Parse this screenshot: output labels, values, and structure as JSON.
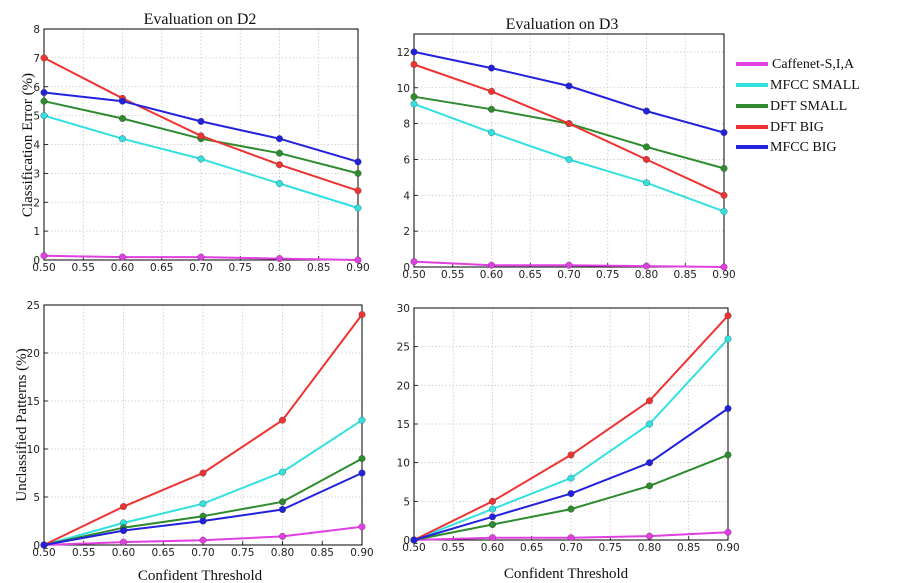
{
  "figure": {
    "ylabel_top": "Classification Error  (%)",
    "ylabel_bottom": "Unclassified Patterns (%)",
    "xlabel_bottom_left": "Confident Threshold",
    "xlabel_bottom_right": "Confident Threshold"
  },
  "legend": {
    "entries": [
      {
        "label": "Caffenet-S,I,A",
        "color": "#e040e0"
      },
      {
        "label": "MFCC SMALL",
        "color": "#33e0e0"
      },
      {
        "label": "DFT SMALL",
        "color": "#2e8b2e"
      },
      {
        "label": "DFT BIG",
        "color": "#ee3333"
      },
      {
        "label": "MFCC BIG",
        "color": "#2222dd"
      }
    ]
  },
  "chart_data": [
    {
      "type": "line",
      "title": "Evaluation on D2",
      "xlabel": "",
      "ylabel": "Classification Error  (%)",
      "x": [
        0.5,
        0.6,
        0.7,
        0.8,
        0.9
      ],
      "xlim": [
        0.5,
        0.9
      ],
      "ylim": [
        0,
        8
      ],
      "xticks": [
        "0.50",
        "0.55",
        "0.60",
        "0.65",
        "0.70",
        "0.75",
        "0.80",
        "0.85",
        "0.90"
      ],
      "yticks": [
        "0",
        "1",
        "2",
        "3",
        "4",
        "5",
        "6",
        "7",
        "8"
      ],
      "grid": true,
      "series": [
        {
          "name": "Caffenet-S,I,A",
          "color": "#e040e0",
          "values": [
            0.15,
            0.1,
            0.1,
            0.05,
            0.0
          ]
        },
        {
          "name": "MFCC SMALL",
          "color": "#33e0e0",
          "values": [
            5.0,
            4.2,
            3.5,
            2.65,
            1.8
          ]
        },
        {
          "name": "DFT SMALL",
          "color": "#2e8b2e",
          "values": [
            5.5,
            4.9,
            4.2,
            3.7,
            3.0
          ]
        },
        {
          "name": "DFT BIG",
          "color": "#ee3333",
          "values": [
            7.0,
            5.6,
            4.3,
            3.3,
            2.4
          ]
        },
        {
          "name": "MFCC BIG",
          "color": "#2222dd",
          "values": [
            5.8,
            5.5,
            4.8,
            4.2,
            3.4
          ]
        }
      ]
    },
    {
      "type": "line",
      "title": "Evaluation on D3",
      "xlabel": "",
      "ylabel": "",
      "x": [
        0.5,
        0.6,
        0.7,
        0.8,
        0.9
      ],
      "xlim": [
        0.5,
        0.9
      ],
      "ylim": [
        0,
        13
      ],
      "xticks": [
        "0.50",
        "0.55",
        "0.60",
        "0.65",
        "0.70",
        "0.75",
        "0.80",
        "0.85",
        "0.90"
      ],
      "yticks": [
        "0",
        "2",
        "4",
        "6",
        "8",
        "10",
        "12"
      ],
      "grid": true,
      "series": [
        {
          "name": "Caffenet-S,I,A",
          "color": "#e040e0",
          "values": [
            0.3,
            0.1,
            0.1,
            0.05,
            0.0
          ]
        },
        {
          "name": "MFCC SMALL",
          "color": "#33e0e0",
          "values": [
            9.1,
            7.5,
            6.0,
            4.7,
            3.1
          ]
        },
        {
          "name": "DFT SMALL",
          "color": "#2e8b2e",
          "values": [
            9.5,
            8.8,
            8.0,
            6.7,
            5.5
          ]
        },
        {
          "name": "DFT BIG",
          "color": "#ee3333",
          "values": [
            11.3,
            9.8,
            8.0,
            6.0,
            4.0
          ]
        },
        {
          "name": "MFCC BIG",
          "color": "#2222dd",
          "values": [
            12.0,
            11.1,
            10.1,
            8.7,
            7.5
          ]
        }
      ]
    },
    {
      "type": "line",
      "title": "",
      "xlabel": "Confident Threshold",
      "ylabel": "Unclassified Patterns (%)",
      "x": [
        0.5,
        0.6,
        0.7,
        0.8,
        0.9
      ],
      "xlim": [
        0.5,
        0.9
      ],
      "ylim": [
        0,
        25
      ],
      "xticks": [
        "0.50",
        "0.55",
        "0.60",
        "0.65",
        "0.70",
        "0.75",
        "0.80",
        "0.85",
        "0.90"
      ],
      "yticks": [
        "0",
        "5",
        "10",
        "15",
        "20",
        "25"
      ],
      "grid": true,
      "series": [
        {
          "name": "Caffenet-S,I,A",
          "color": "#e040e0",
          "values": [
            0.0,
            0.3,
            0.5,
            0.9,
            1.9
          ]
        },
        {
          "name": "MFCC SMALL",
          "color": "#33e0e0",
          "values": [
            0.0,
            2.3,
            4.3,
            7.6,
            13.0
          ]
        },
        {
          "name": "DFT SMALL",
          "color": "#2e8b2e",
          "values": [
            0.0,
            1.8,
            3.0,
            4.5,
            9.0
          ]
        },
        {
          "name": "DFT BIG",
          "color": "#ee3333",
          "values": [
            0.0,
            4.0,
            7.5,
            13.0,
            24.0
          ]
        },
        {
          "name": "MFCC BIG",
          "color": "#2222dd",
          "values": [
            0.0,
            1.5,
            2.5,
            3.7,
            7.5
          ]
        }
      ]
    },
    {
      "type": "line",
      "title": "",
      "xlabel": "Confident Threshold",
      "ylabel": "",
      "x": [
        0.5,
        0.6,
        0.7,
        0.8,
        0.9
      ],
      "xlim": [
        0.5,
        0.9
      ],
      "ylim": [
        0,
        30
      ],
      "xticks": [
        "0.50",
        "0.55",
        "0.60",
        "0.65",
        "0.70",
        "0.75",
        "0.80",
        "0.85",
        "0.90"
      ],
      "yticks": [
        "0",
        "5",
        "10",
        "15",
        "20",
        "25",
        "30"
      ],
      "grid": true,
      "series": [
        {
          "name": "Caffenet-S,I,A",
          "color": "#e040e0",
          "values": [
            0.0,
            0.3,
            0.3,
            0.5,
            1.0
          ]
        },
        {
          "name": "MFCC SMALL",
          "color": "#33e0e0",
          "values": [
            0.0,
            4.0,
            8.0,
            15.0,
            26.0
          ]
        },
        {
          "name": "DFT SMALL",
          "color": "#2e8b2e",
          "values": [
            0.0,
            2.0,
            4.0,
            7.0,
            11.0
          ]
        },
        {
          "name": "DFT BIG",
          "color": "#ee3333",
          "values": [
            0.0,
            5.0,
            11.0,
            18.0,
            29.0
          ]
        },
        {
          "name": "MFCC BIG",
          "color": "#2222dd",
          "values": [
            0.0,
            3.0,
            6.0,
            10.0,
            17.0
          ]
        }
      ]
    }
  ]
}
